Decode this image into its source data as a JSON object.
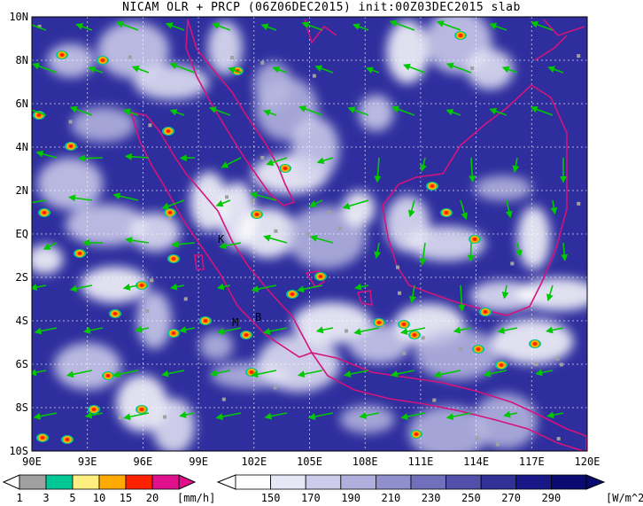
{
  "title": "NICAM OLR + PRCP (06Z06DEC2015) init:00Z03DEC2015 slab",
  "map": {
    "lat_labels": [
      "10N",
      "8N",
      "6N",
      "4N",
      "2N",
      "EQ",
      "2S",
      "4S",
      "6S",
      "8S",
      "10S"
    ],
    "lon_labels": [
      "90E",
      "93E",
      "96E",
      "99E",
      "102E",
      "105E",
      "108E",
      "111E",
      "114E",
      "117E",
      "120E"
    ],
    "place_labels": [
      "K",
      "M",
      "B"
    ]
  },
  "precip_colorbar": {
    "unit": "[mm/h]",
    "ticks": [
      "1",
      "3",
      "5",
      "10",
      "15",
      "20"
    ],
    "colors": [
      "#a0a0a0",
      "#00c896",
      "#ffee80",
      "#ffaa00",
      "#ff2200",
      "#e0108c"
    ]
  },
  "olr_colorbar": {
    "unit": "[W/m^2]",
    "ticks": [
      "150",
      "170",
      "190",
      "210",
      "230",
      "250",
      "270",
      "290"
    ],
    "colors": [
      "#ffffff",
      "#e6e6f5",
      "#ccccea",
      "#b0b0de",
      "#9090cc",
      "#7070bb",
      "#5050aa",
      "#303099",
      "#181888",
      "#0a0a70"
    ]
  },
  "colors": {
    "coast": "#d4147a",
    "wind": "#00c800",
    "sky": "#2e2e9e"
  }
}
